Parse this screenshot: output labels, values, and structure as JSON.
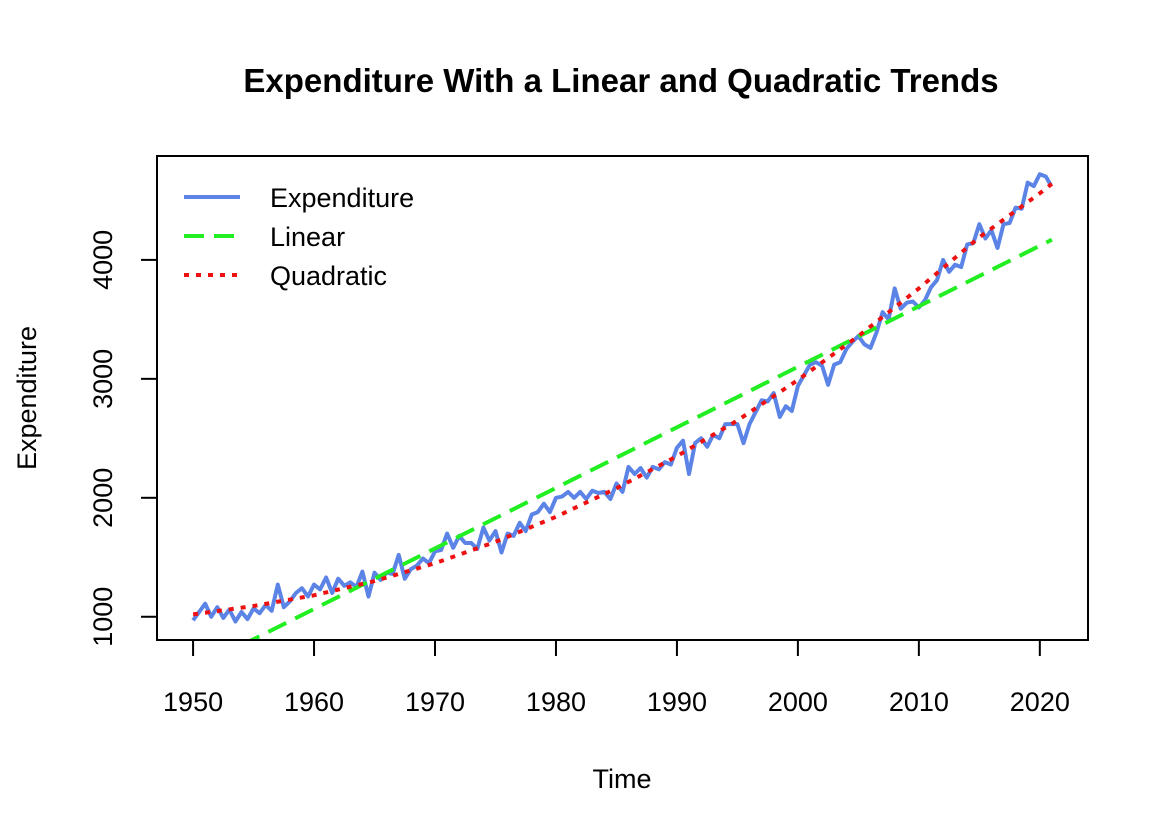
{
  "chart_data": {
    "type": "line",
    "title": "Expenditure With a Linear and Quadratic Trends",
    "xlabel": "Time",
    "ylabel": "Expenditure",
    "xlim": [
      1947.1,
      2023.9
    ],
    "ylim": [
      813,
      4865
    ],
    "x_ticks": [
      1950,
      1960,
      1970,
      1980,
      1990,
      2000,
      2010,
      2020
    ],
    "y_ticks": [
      1000,
      2000,
      3000,
      4000
    ],
    "grid": false,
    "legend_position": "top-left",
    "series": [
      {
        "name": "Expenditure",
        "style": "solid",
        "color": "#5b84e6",
        "x": [
          1950.0,
          1950.5,
          1951.0,
          1951.5,
          1952.0,
          1952.5,
          1953.0,
          1953.5,
          1954.0,
          1954.5,
          1955.0,
          1955.5,
          1956.0,
          1956.5,
          1957.0,
          1957.5,
          1958.0,
          1958.5,
          1959.0,
          1959.5,
          1960.0,
          1960.5,
          1961.0,
          1961.5,
          1962.0,
          1962.5,
          1963.0,
          1963.5,
          1964.0,
          1964.5,
          1965.0,
          1965.5,
          1966.0,
          1966.5,
          1967.0,
          1967.5,
          1968.0,
          1968.5,
          1969.0,
          1969.5,
          1970.0,
          1970.5,
          1971.0,
          1971.5,
          1972.0,
          1972.5,
          1973.0,
          1973.5,
          1974.0,
          1974.5,
          1975.0,
          1975.5,
          1976.0,
          1976.5,
          1977.0,
          1977.5,
          1978.0,
          1978.5,
          1979.0,
          1979.5,
          1980.0,
          1980.5,
          1981.0,
          1981.5,
          1982.0,
          1982.5,
          1983.0,
          1983.5,
          1984.0,
          1984.5,
          1985.0,
          1985.5,
          1986.0,
          1986.5,
          1987.0,
          1987.5,
          1988.0,
          1988.5,
          1989.0,
          1989.5,
          1990.0,
          1990.5,
          1991.0,
          1991.5,
          1992.0,
          1992.5,
          1993.0,
          1993.5,
          1994.0,
          1994.5,
          1995.0,
          1995.5,
          1996.0,
          1996.5,
          1997.0,
          1997.5,
          1998.0,
          1998.5,
          1999.0,
          1999.5,
          2000.0,
          2000.5,
          2001.0,
          2001.5,
          2002.0,
          2002.5,
          2003.0,
          2003.5,
          2004.0,
          2004.5,
          2005.0,
          2005.5,
          2006.0,
          2006.5,
          2007.0,
          2007.5,
          2008.0,
          2008.5,
          2009.0,
          2009.5,
          2010.0,
          2010.5,
          2011.0,
          2011.5,
          2012.0,
          2012.5,
          2013.0,
          2013.5,
          2014.0,
          2014.5,
          2015.0,
          2015.5,
          2016.0,
          2016.5,
          2017.0,
          2017.5,
          2018.0,
          2018.5,
          2019.0,
          2019.5,
          2020.0,
          2020.5,
          2020.9
        ],
        "values": [
          970,
          1040,
          1110,
          1000,
          1080,
          990,
          1060,
          960,
          1040,
          980,
          1070,
          1030,
          1100,
          1050,
          1270,
          1080,
          1130,
          1200,
          1240,
          1170,
          1270,
          1230,
          1330,
          1200,
          1320,
          1260,
          1290,
          1250,
          1380,
          1170,
          1370,
          1310,
          1370,
          1360,
          1520,
          1320,
          1400,
          1430,
          1490,
          1450,
          1550,
          1560,
          1700,
          1580,
          1680,
          1620,
          1620,
          1570,
          1750,
          1640,
          1720,
          1540,
          1700,
          1680,
          1790,
          1720,
          1860,
          1880,
          1950,
          1880,
          2000,
          2010,
          2050,
          2000,
          2050,
          1990,
          2060,
          2040,
          2050,
          1990,
          2120,
          2050,
          2260,
          2200,
          2250,
          2170,
          2260,
          2240,
          2300,
          2280,
          2420,
          2480,
          2200,
          2460,
          2500,
          2430,
          2530,
          2500,
          2620,
          2620,
          2620,
          2460,
          2620,
          2720,
          2820,
          2810,
          2880,
          2680,
          2770,
          2730,
          2940,
          3030,
          3120,
          3140,
          3110,
          2950,
          3120,
          3140,
          3250,
          3310,
          3360,
          3290,
          3260,
          3390,
          3560,
          3500,
          3760,
          3590,
          3640,
          3650,
          3600,
          3660,
          3770,
          3830,
          4000,
          3900,
          3960,
          3940,
          4130,
          4140,
          4300,
          4180,
          4250,
          4100,
          4300,
          4310,
          4440,
          4430,
          4650,
          4620,
          4720,
          4700,
          4630
        ]
      },
      {
        "name": "Linear",
        "style": "dashed",
        "color": "#22ee22",
        "x": [
          1954.0,
          2021.0
        ],
        "values": [
          760,
          4170
        ]
      },
      {
        "name": "Quadratic",
        "style": "dotted",
        "color": "#ee1111",
        "x": [
          1950,
          1955,
          1960,
          1965,
          1970,
          1975,
          1980,
          1985,
          1990,
          1995,
          2000,
          2005,
          2010,
          2015,
          2020,
          2021
        ],
        "values": [
          1020,
          1090,
          1180,
          1300,
          1450,
          1630,
          1840,
          2080,
          2350,
          2650,
          2990,
          3360,
          3760,
          4190,
          4560,
          4640
        ]
      }
    ]
  }
}
